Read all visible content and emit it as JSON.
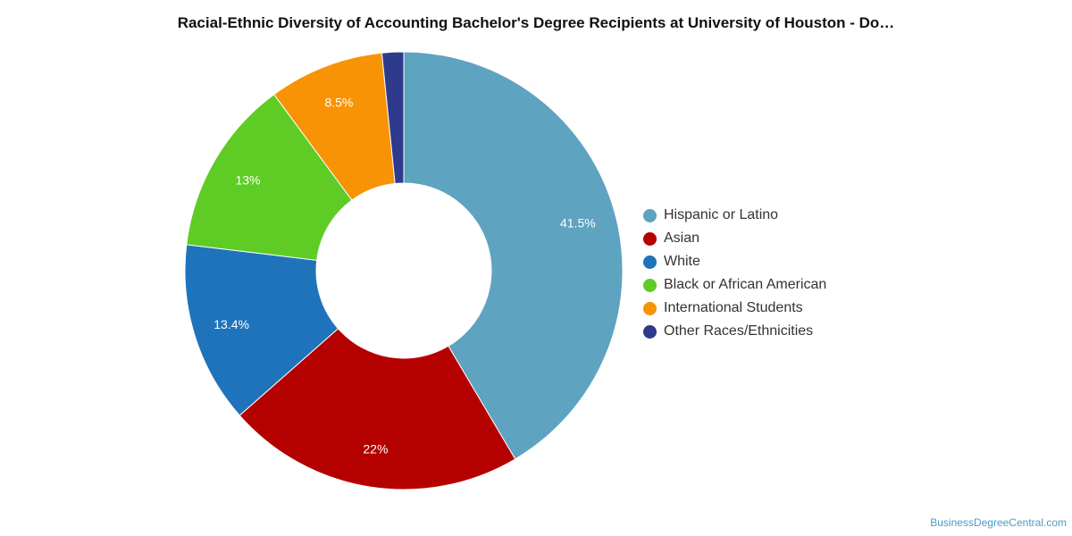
{
  "chart_data": {
    "type": "pie",
    "title": "Racial-Ethnic Diversity of Accounting Bachelor's Degree Recipients at University of Houston - Do…",
    "donut": true,
    "legend_position": "right",
    "slices": [
      {
        "name": "Hispanic or Latino",
        "value": 41.5,
        "label": "41.5%",
        "color": "#5ea3c0"
      },
      {
        "name": "Asian",
        "value": 22,
        "label": "22%",
        "color": "#b50000"
      },
      {
        "name": "White",
        "value": 13.4,
        "label": "13.4%",
        "color": "#1f73bb"
      },
      {
        "name": "Black or African American",
        "value": 13,
        "label": "13%",
        "color": "#5fcc25"
      },
      {
        "name": "International Students",
        "value": 8.5,
        "label": "8.5%",
        "color": "#f79304"
      },
      {
        "name": "Other Races/Ethnicities",
        "value": 1.6,
        "label": "",
        "color": "#2e3a8c"
      }
    ]
  },
  "source": "BusinessDegreeCentral.com"
}
